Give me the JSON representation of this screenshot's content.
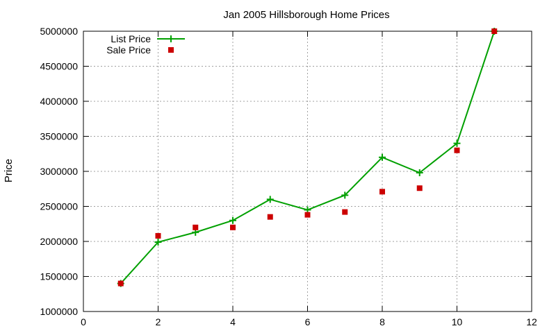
{
  "chart_data": {
    "type": "line",
    "title": "Jan 2005 Hillsborough Home Prices",
    "xlabel": "",
    "ylabel": "Price",
    "xlim": [
      0,
      12
    ],
    "ylim": [
      1000000,
      5000000
    ],
    "xticks": [
      0,
      2,
      4,
      6,
      8,
      10,
      12
    ],
    "yticks": [
      1000000,
      1500000,
      2000000,
      2500000,
      3000000,
      3500000,
      4000000,
      4500000,
      5000000
    ],
    "grid": true,
    "legend_position": "top-left",
    "series": [
      {
        "name": "List Price",
        "type": "line",
        "color": "#00a000",
        "marker": "plus",
        "x": [
          1,
          2,
          3,
          4,
          5,
          6,
          7,
          8,
          9,
          10,
          11
        ],
        "y": [
          1400000,
          1990000,
          2130000,
          2300000,
          2600000,
          2450000,
          2660000,
          3200000,
          2980000,
          3400000,
          5000000
        ]
      },
      {
        "name": "Sale Price",
        "type": "scatter",
        "color": "#cc0000",
        "marker": "square",
        "x": [
          1,
          2,
          3,
          4,
          5,
          6,
          7,
          8,
          9,
          10,
          11
        ],
        "y": [
          1400000,
          2080000,
          2200000,
          2200000,
          2350000,
          2380000,
          2420000,
          2710000,
          2760000,
          3300000,
          5000000
        ]
      }
    ]
  }
}
